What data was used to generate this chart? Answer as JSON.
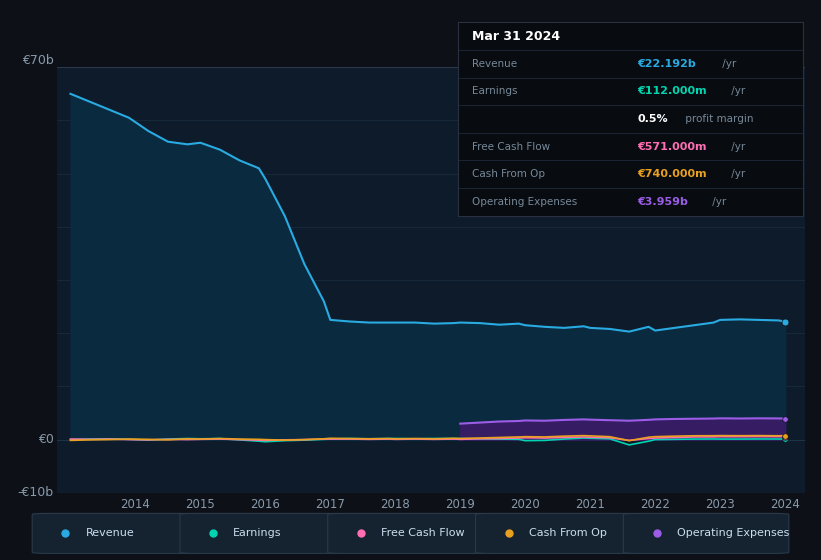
{
  "bg_color": "#0d1117",
  "plot_bg_color": "#0d1b2a",
  "grid_color_major": "#1e3348",
  "text_color": "#8899aa",
  "border_color": "#2a3a4a",
  "info_bg": "#080c10",
  "info_border": "#2a3040",
  "years": [
    2013.0,
    2013.3,
    2013.6,
    2013.9,
    2014.2,
    2014.5,
    2014.8,
    2015.0,
    2015.3,
    2015.6,
    2015.9,
    2016.0,
    2016.3,
    2016.6,
    2016.9,
    2017.0,
    2017.3,
    2017.6,
    2017.9,
    2018.0,
    2018.3,
    2018.6,
    2018.9,
    2019.0,
    2019.3,
    2019.6,
    2019.9,
    2020.0,
    2020.3,
    2020.6,
    2020.9,
    2021.0,
    2021.3,
    2021.6,
    2021.9,
    2022.0,
    2022.3,
    2022.6,
    2022.9,
    2023.0,
    2023.3,
    2023.6,
    2023.9,
    2024.0
  ],
  "revenue": [
    65.0,
    63.5,
    62.0,
    60.5,
    58.0,
    56.0,
    55.5,
    55.8,
    54.5,
    52.5,
    51.0,
    49.0,
    42.0,
    33.0,
    26.0,
    22.5,
    22.2,
    22.0,
    22.0,
    22.0,
    22.0,
    21.8,
    21.9,
    22.0,
    21.9,
    21.6,
    21.8,
    21.5,
    21.2,
    21.0,
    21.3,
    21.0,
    20.8,
    20.3,
    21.2,
    20.5,
    21.0,
    21.5,
    22.0,
    22.5,
    22.6,
    22.5,
    22.4,
    22.192
  ],
  "earnings": [
    0.0,
    0.1,
    0.15,
    0.05,
    -0.1,
    0.1,
    0.2,
    0.15,
    0.2,
    -0.05,
    -0.3,
    -0.4,
    -0.2,
    -0.1,
    0.05,
    0.1,
    0.2,
    0.15,
    0.2,
    0.2,
    0.15,
    0.2,
    0.2,
    0.2,
    0.15,
    0.1,
    0.05,
    -0.2,
    -0.15,
    0.1,
    0.3,
    0.25,
    0.15,
    -1.0,
    -0.3,
    0.0,
    0.05,
    0.1,
    0.12,
    0.1,
    0.1,
    0.12,
    0.11,
    0.112
  ],
  "free_cash_flow": [
    0.1,
    0.05,
    0.1,
    0.0,
    -0.05,
    0.05,
    0.0,
    0.05,
    0.1,
    0.0,
    -0.1,
    -0.15,
    -0.05,
    0.0,
    0.1,
    0.1,
    0.1,
    0.05,
    0.1,
    0.05,
    0.1,
    0.05,
    0.1,
    0.05,
    0.15,
    0.2,
    0.3,
    0.35,
    0.3,
    0.4,
    0.5,
    0.45,
    0.35,
    -0.15,
    0.2,
    0.3,
    0.4,
    0.5,
    0.52,
    0.55,
    0.55,
    0.57,
    0.56,
    0.571
  ],
  "cash_from_op": [
    -0.15,
    -0.05,
    0.0,
    0.1,
    0.05,
    -0.05,
    0.15,
    0.1,
    0.2,
    0.1,
    0.05,
    0.0,
    -0.1,
    0.0,
    0.15,
    0.25,
    0.2,
    0.15,
    0.2,
    0.15,
    0.2,
    0.15,
    0.25,
    0.2,
    0.3,
    0.4,
    0.5,
    0.55,
    0.5,
    0.65,
    0.75,
    0.7,
    0.55,
    -0.2,
    0.45,
    0.55,
    0.65,
    0.72,
    0.73,
    0.75,
    0.73,
    0.75,
    0.72,
    0.74
  ],
  "operating_expenses": [
    null,
    null,
    null,
    null,
    null,
    null,
    null,
    null,
    null,
    null,
    null,
    null,
    null,
    null,
    null,
    null,
    null,
    null,
    null,
    null,
    null,
    null,
    null,
    3.0,
    3.2,
    3.4,
    3.5,
    3.6,
    3.55,
    3.7,
    3.8,
    3.75,
    3.65,
    3.55,
    3.72,
    3.8,
    3.88,
    3.92,
    3.96,
    4.0,
    3.97,
    4.0,
    3.98,
    3.959
  ],
  "ylim": [
    -10,
    70
  ],
  "y_gridlines": [
    -10,
    0,
    10,
    20,
    30,
    40,
    50,
    60,
    70
  ],
  "xtick_years": [
    2014,
    2015,
    2016,
    2017,
    2018,
    2019,
    2020,
    2021,
    2022,
    2023,
    2024
  ],
  "revenue_color": "#29abe2",
  "revenue_fill_color": "#0a2a40",
  "earnings_color": "#00d4b0",
  "free_cash_flow_color": "#ff6eb4",
  "cash_from_op_color": "#e8a020",
  "operating_expenses_color": "#9b5de5",
  "operating_expenses_fill_color": "#3d1a6a",
  "legend_items": [
    {
      "label": "Revenue",
      "color": "#29abe2"
    },
    {
      "label": "Earnings",
      "color": "#00d4b0"
    },
    {
      "label": "Free Cash Flow",
      "color": "#ff6eb4"
    },
    {
      "label": "Cash From Op",
      "color": "#e8a020"
    },
    {
      "label": "Operating Expenses",
      "color": "#9b5de5"
    }
  ],
  "table_rows": [
    {
      "label": "Revenue",
      "val": "€22.192b",
      "suffix": " /yr",
      "color": "#29abe2",
      "bold_val": true
    },
    {
      "label": "Earnings",
      "val": "€112.000m",
      "suffix": " /yr",
      "color": "#00d4b0",
      "bold_val": true
    },
    {
      "label": "",
      "val": "0.5%",
      "suffix": " profit margin",
      "color": "white",
      "bold_val": true
    },
    {
      "label": "Free Cash Flow",
      "val": "€571.000m",
      "suffix": " /yr",
      "color": "#ff6eb4",
      "bold_val": true
    },
    {
      "label": "Cash From Op",
      "val": "€740.000m",
      "suffix": " /yr",
      "color": "#e8a020",
      "bold_val": true
    },
    {
      "label": "Operating Expenses",
      "val": "€3.959b",
      "suffix": " /yr",
      "color": "#9b5de5",
      "bold_val": true
    }
  ]
}
